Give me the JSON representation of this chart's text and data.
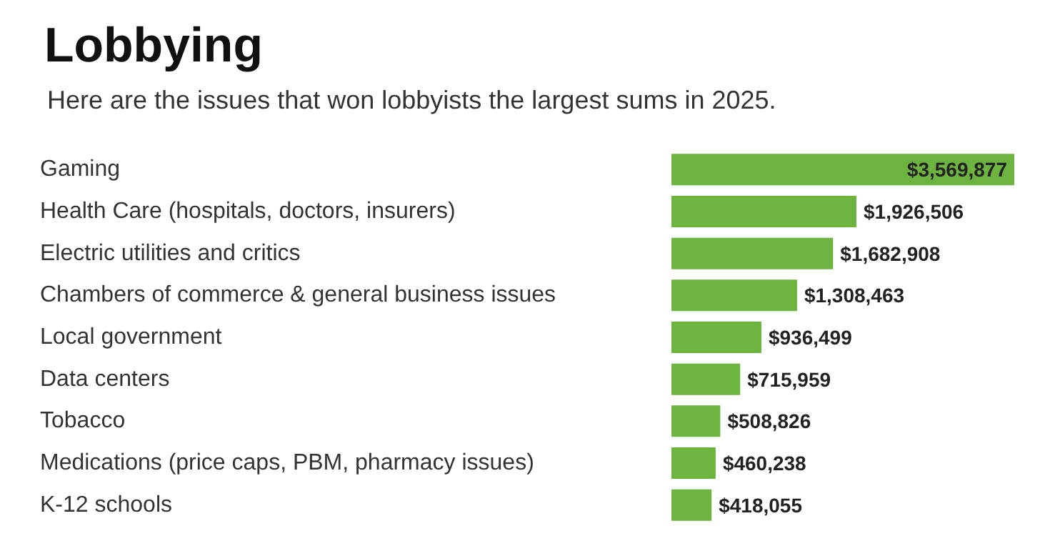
{
  "chart_data": {
    "type": "bar",
    "orientation": "horizontal",
    "title": "Lobbying",
    "subtitle": "Here are the issues that won lobbyists the largest sums in 2025.",
    "categories": [
      "Gaming",
      "Health Care (hospitals, doctors, insurers)",
      "Electric utilities and critics",
      "Chambers of commerce & general business issues",
      "Local government",
      "Data centers",
      "Tobacco",
      "Medications (price caps, PBM, pharmacy issues)",
      "K-12 schools"
    ],
    "values": [
      3569877,
      1926506,
      1682908,
      1308463,
      936499,
      715959,
      508826,
      460238,
      418055
    ],
    "value_labels": [
      "$3,569,877",
      "$1,926,506",
      "$1,682,908",
      "$1,308,463",
      "$936,499",
      "$715,959",
      "$508,826",
      "$460,238",
      "$418,055"
    ],
    "color": "#6cb33f"
  }
}
